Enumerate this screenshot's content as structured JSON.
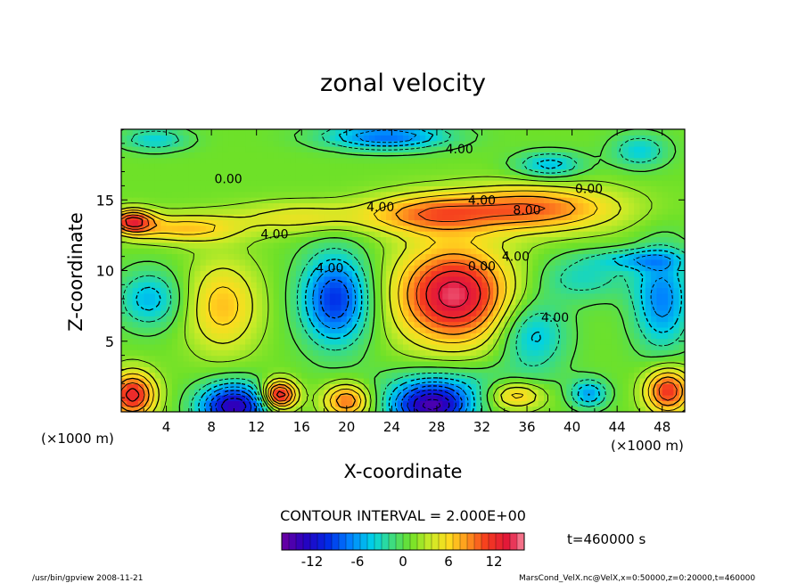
{
  "chart_data": {
    "type": "heatmap",
    "title": "zonal velocity",
    "xlabel": "X-coordinate",
    "ylabel": "Z-coordinate",
    "x_unit_note": "(×1000 m)",
    "y_unit_note": "(×1000 m)",
    "xlim": [
      0,
      50
    ],
    "ylim": [
      0,
      20
    ],
    "x_ticks": [
      "4",
      "8",
      "12",
      "16",
      "20",
      "24",
      "28",
      "32",
      "36",
      "40",
      "44",
      "48"
    ],
    "y_ticks": [
      "5",
      "10",
      "15"
    ],
    "contour_interval_text": "CONTOUR INTERVAL = 2.000E+00",
    "contour_labels": [
      {
        "text": "4.00",
        "x": 30.0,
        "z": 18.6
      },
      {
        "text": "0.00",
        "x": 9.5,
        "z": 16.5
      },
      {
        "text": "0.00",
        "x": 41.5,
        "z": 15.8
      },
      {
        "text": "4.00",
        "x": 23.0,
        "z": 14.5
      },
      {
        "text": "4.00",
        "x": 32.0,
        "z": 15.0
      },
      {
        "text": "8.00",
        "x": 36.0,
        "z": 14.3
      },
      {
        "text": "4.00",
        "x": 13.6,
        "z": 12.6
      },
      {
        "text": "4.00",
        "x": 35.0,
        "z": 11.0
      },
      {
        "text": "0.00",
        "x": 32.0,
        "z": 10.3
      },
      {
        "text": "4.00",
        "x": 18.5,
        "z": 10.2
      },
      {
        "text": "4.00",
        "x": 38.5,
        "z": 6.7
      }
    ],
    "field_features": [
      {
        "x": 29.5,
        "z": 8.3,
        "rx": 5.0,
        "rz": 3.4,
        "value": 14
      },
      {
        "x": 36.5,
        "z": 14.4,
        "rx": 7.5,
        "rz": 1.6,
        "value": 9
      },
      {
        "x": 27.0,
        "z": 14.0,
        "rx": 5.5,
        "rz": 1.4,
        "value": 7
      },
      {
        "x": 16.0,
        "z": 13.8,
        "rx": 6.0,
        "rz": 1.1,
        "value": 4
      },
      {
        "x": 5.5,
        "z": 13.0,
        "rx": 5.0,
        "rz": 1.0,
        "value": 6
      },
      {
        "x": 1.0,
        "z": 13.5,
        "rx": 1.8,
        "rz": 0.8,
        "value": 11
      },
      {
        "x": 9.0,
        "z": 7.5,
        "rx": 3.2,
        "rz": 3.2,
        "value": 6
      },
      {
        "x": 19.0,
        "z": 8.0,
        "rx": 3.0,
        "rz": 3.2,
        "value": -11
      },
      {
        "x": 48.0,
        "z": 8.0,
        "rx": 2.5,
        "rz": 3.5,
        "value": -8
      },
      {
        "x": 2.5,
        "z": 8.0,
        "rx": 2.8,
        "rz": 2.0,
        "value": -6
      },
      {
        "x": 36.5,
        "z": 5.5,
        "rx": 3.0,
        "rz": 2.5,
        "value": -6
      },
      {
        "x": 38.0,
        "z": 17.5,
        "rx": 3.0,
        "rz": 0.9,
        "value": -6
      },
      {
        "x": 23.5,
        "z": 19.5,
        "rx": 5.5,
        "rz": 0.9,
        "value": -9
      },
      {
        "x": 3.0,
        "z": 19.3,
        "rx": 3.0,
        "rz": 0.8,
        "value": -5
      },
      {
        "x": 46.0,
        "z": 18.5,
        "rx": 2.5,
        "rz": 1.2,
        "value": -5
      },
      {
        "x": 10.0,
        "z": 0.4,
        "rx": 3.0,
        "rz": 1.6,
        "value": -15
      },
      {
        "x": 27.5,
        "z": 0.4,
        "rx": 3.5,
        "rz": 1.6,
        "value": -15
      },
      {
        "x": 14.0,
        "z": 1.2,
        "rx": 1.5,
        "rz": 1.0,
        "value": 14
      },
      {
        "x": 1.0,
        "z": 1.2,
        "rx": 2.0,
        "rz": 1.6,
        "value": 12
      },
      {
        "x": 48.5,
        "z": 1.5,
        "rx": 2.0,
        "rz": 1.6,
        "value": 11
      },
      {
        "x": 20.0,
        "z": 0.8,
        "rx": 2.0,
        "rz": 1.2,
        "value": 9
      },
      {
        "x": 35.0,
        "z": 1.2,
        "rx": 2.5,
        "rz": 1.0,
        "value": 7
      },
      {
        "x": 41.5,
        "z": 1.3,
        "rx": 1.6,
        "rz": 1.0,
        "value": -7
      },
      {
        "x": 46.0,
        "z": 10.8,
        "rx": 4.0,
        "rz": 0.7,
        "value": -5
      },
      {
        "x": 41.0,
        "z": 9.5,
        "rx": 4.0,
        "rz": 1.6,
        "value": -4
      },
      {
        "x": 30.0,
        "z": 2.0,
        "rx": 7.0,
        "rz": 1.5,
        "value": -3
      }
    ],
    "colorbar": {
      "min": -16,
      "max": 16,
      "tick_labels": [
        "-12",
        "-6",
        "0",
        "6",
        "12"
      ],
      "tick_values": [
        -12,
        -6,
        0,
        6,
        12
      ]
    },
    "time_label": "t=460000 s"
  },
  "footer": {
    "left": "/usr/bin/gpview   2008-11-21",
    "right": "MarsCond_VelX.nc@VelX,x=0:50000,z=0:20000,t=460000"
  }
}
